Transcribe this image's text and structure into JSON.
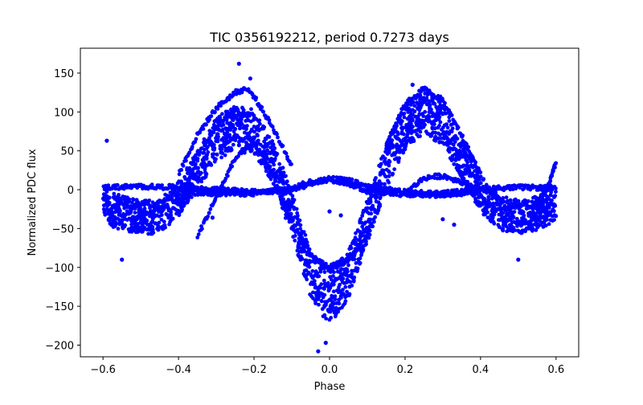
{
  "chart_data": {
    "type": "scatter",
    "title": "TIC 0356192212, period 0.7273 days",
    "xlabel": "Phase",
    "ylabel": "Normalized PDC flux",
    "xlim": [
      -0.66,
      0.66
    ],
    "ylim": [
      -215,
      182
    ],
    "xticks": [
      -0.6,
      -0.4,
      -0.2,
      0.0,
      0.2,
      0.4,
      0.6
    ],
    "xtick_labels": [
      "−0.6",
      "−0.4",
      "−0.2",
      "0.0",
      "0.2",
      "0.4",
      "0.6"
    ],
    "yticks": [
      -200,
      -150,
      -100,
      -50,
      0,
      50,
      100,
      150
    ],
    "ytick_labels": [
      "−200",
      "−150",
      "−100",
      "−50",
      "0",
      "50",
      "100",
      "150"
    ],
    "grid": false,
    "legend": "none",
    "series_color": "#0000ff",
    "series": [
      {
        "style": "dense band (phase-folded light curve envelope)",
        "x": [
          -0.6,
          -0.58,
          -0.55,
          -0.5,
          -0.45,
          -0.4,
          -0.35,
          -0.3,
          -0.25,
          -0.22,
          -0.2,
          -0.15,
          -0.1,
          -0.05,
          0.0,
          0.05,
          0.1,
          0.15,
          0.2,
          0.25,
          0.3,
          0.35,
          0.4,
          0.45,
          0.5,
          0.55,
          0.6
        ],
        "y_center": [
          -10,
          -25,
          -30,
          -35,
          -35,
          -12,
          25,
          65,
          80,
          80,
          75,
          35,
          -30,
          -110,
          -140,
          -110,
          -40,
          30,
          80,
          100,
          85,
          40,
          -5,
          -30,
          -35,
          -30,
          -20
        ],
        "y_halfwidth": [
          18,
          22,
          22,
          22,
          22,
          22,
          25,
          28,
          28,
          28,
          28,
          28,
          28,
          30,
          35,
          30,
          28,
          28,
          28,
          28,
          28,
          26,
          24,
          22,
          22,
          22,
          20
        ]
      },
      {
        "style": "flat secondary track",
        "x": [
          -0.6,
          -0.5,
          -0.4,
          -0.3,
          -0.2,
          -0.1,
          -0.05,
          0.0,
          0.05,
          0.1,
          0.2,
          0.3,
          0.4,
          0.5,
          0.6
        ],
        "y": [
          3,
          4,
          3,
          0,
          -3,
          -1,
          8,
          14,
          12,
          4,
          -3,
          -5,
          1,
          3,
          2
        ]
      },
      {
        "style": "flat secondary track",
        "x": [
          -0.4,
          -0.3,
          -0.2,
          -0.1,
          -0.05,
          0.0,
          0.05,
          0.1,
          0.2,
          0.3,
          0.4
        ],
        "y": [
          -3,
          -5,
          -5,
          2,
          10,
          13,
          8,
          -2,
          -6,
          -7,
          -2
        ]
      },
      {
        "style": "upper arc track",
        "x": [
          -0.4,
          -0.35,
          -0.3,
          -0.25,
          -0.22,
          -0.2,
          -0.15,
          -0.1
        ],
        "y": [
          20,
          70,
          105,
          125,
          130,
          120,
          80,
          30
        ]
      },
      {
        "style": "upper arc track",
        "x": [
          0.15,
          0.2,
          0.25,
          0.3,
          0.35,
          0.4
        ],
        "y": [
          60,
          110,
          130,
          115,
          70,
          20
        ]
      },
      {
        "style": "inner dip track",
        "x": [
          -0.35,
          -0.3,
          -0.25,
          -0.2,
          -0.15,
          -0.1,
          -0.05,
          0.0,
          0.05,
          0.1
        ],
        "y": [
          -60,
          -10,
          40,
          60,
          20,
          -40,
          -85,
          -100,
          -90,
          -60
        ]
      },
      {
        "style": "right bump track",
        "x": [
          0.2,
          0.25,
          0.3,
          0.35,
          0.4
        ],
        "y": [
          -5,
          15,
          18,
          10,
          0
        ]
      },
      {
        "style": "edge rise tracks",
        "x": [
          0.55,
          0.58,
          0.6
        ],
        "y": [
          -20,
          5,
          35
        ]
      },
      {
        "style": "outlier points",
        "x": [
          -0.59,
          -0.24,
          -0.21,
          0.0,
          0.03,
          -0.01,
          -0.03,
          0.22,
          0.33,
          0.3,
          0.5,
          -0.55,
          -0.31
        ],
        "y": [
          63,
          162,
          143,
          -28,
          -33,
          -197,
          -208,
          135,
          -45,
          -38,
          -90,
          -90,
          -36
        ]
      }
    ]
  }
}
